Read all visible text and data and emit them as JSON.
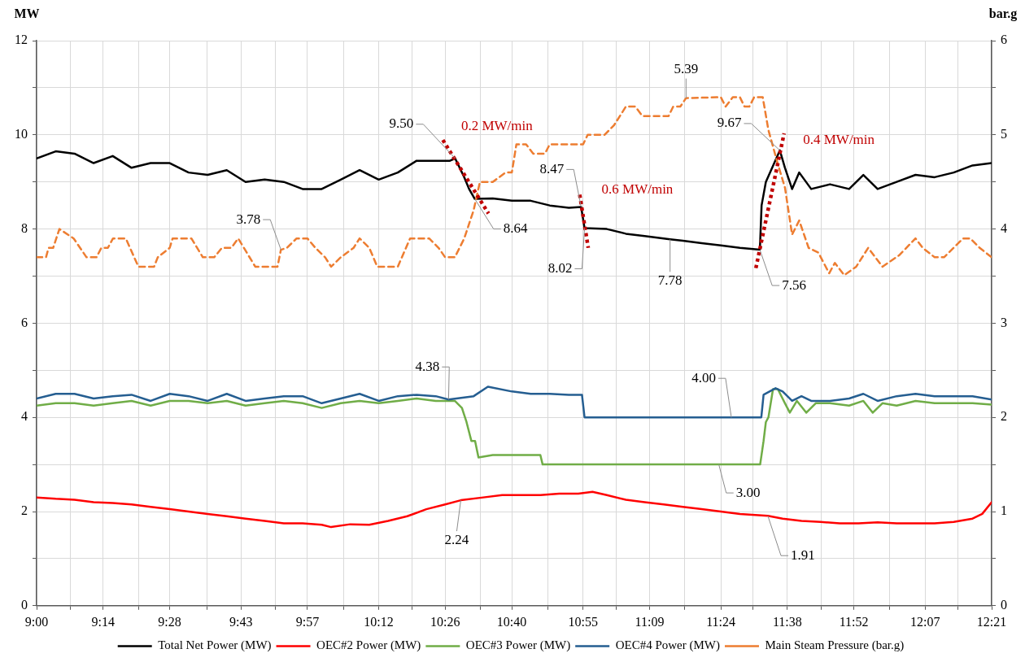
{
  "chart_data": {
    "type": "line",
    "ylabel": "MW",
    "y2label": "bar.g",
    "xlim": [
      9,
      12.35
    ],
    "xticks": [
      {
        "value": 9,
        "label": "9:00"
      },
      {
        "value": 9.1196,
        "label": null
      },
      {
        "value": 9.2333,
        "label": "9:14"
      },
      {
        "value": 9.3589,
        "label": null
      },
      {
        "value": 9.4667,
        "label": "9:28"
      },
      {
        "value": 9.5982,
        "label": null
      },
      {
        "value": 9.7167,
        "label": "9:43"
      },
      {
        "value": 9.8375,
        "label": null
      },
      {
        "value": 9.95,
        "label": "9:57"
      },
      {
        "value": 10.0768,
        "label": null
      },
      {
        "value": 10.2,
        "label": "10:12"
      },
      {
        "value": 10.3161,
        "label": null
      },
      {
        "value": 10.4333,
        "label": "10:26"
      },
      {
        "value": 10.5554,
        "label": null
      },
      {
        "value": 10.6667,
        "label": "10:40"
      },
      {
        "value": 10.7946,
        "label": null
      },
      {
        "value": 10.9167,
        "label": "10:55"
      },
      {
        "value": 11.0339,
        "label": null
      },
      {
        "value": 11.15,
        "label": "11:09"
      },
      {
        "value": 11.2732,
        "label": null
      },
      {
        "value": 11.4,
        "label": "11:24"
      },
      {
        "value": 11.5125,
        "label": null
      },
      {
        "value": 11.6333,
        "label": "11:38"
      },
      {
        "value": 11.7518,
        "label": null
      },
      {
        "value": 11.8667,
        "label": "11:52"
      },
      {
        "value": 11.9911,
        "label": null
      },
      {
        "value": 12.1167,
        "label": "12:07"
      },
      {
        "value": 12.2304,
        "label": null
      },
      {
        "value": 12.35,
        "label": "12:21"
      }
    ],
    "ylim": [
      0,
      12
    ],
    "yticks": [
      0,
      {
        "value": 1,
        "label": null
      },
      2,
      {
        "value": 3,
        "label": null
      },
      4,
      {
        "value": 5,
        "label": null
      },
      6,
      {
        "value": 7,
        "label": null
      },
      8,
      {
        "value": 9,
        "label": null
      },
      10,
      {
        "value": 11,
        "label": null
      },
      12
    ],
    "y2lim": [
      0,
      6
    ],
    "y2ticks": [
      0,
      {
        "value": 0.5,
        "label": null
      },
      1,
      {
        "value": 1.5,
        "label": null
      },
      2,
      {
        "value": 2.5,
        "label": null
      },
      3,
      {
        "value": 3.5,
        "label": null
      },
      4,
      {
        "value": 4.5,
        "label": null
      },
      5,
      {
        "value": 5.5,
        "label": null
      },
      6
    ],
    "grid": true,
    "legend": "bottom",
    "series": [
      {
        "name": "Total Net Power (MW)",
        "color": "#000000",
        "x": [
          9,
          9.067,
          9.133,
          9.2,
          9.267,
          9.333,
          9.4,
          9.467,
          9.533,
          9.6,
          9.667,
          9.733,
          9.8,
          9.867,
          9.933,
          10,
          10.067,
          10.133,
          10.2,
          10.267,
          10.333,
          10.4,
          10.45,
          10.468,
          10.5,
          10.517,
          10.537,
          10.6,
          10.667,
          10.733,
          10.8,
          10.867,
          10.91,
          10.922,
          11,
          11.067,
          11.133,
          11.222,
          11.267,
          11.333,
          11.4,
          11.467,
          11.537,
          11.543,
          11.558,
          11.607,
          11.625,
          11.65,
          11.675,
          11.717,
          11.783,
          11.85,
          11.9,
          11.95,
          12.017,
          12.083,
          12.15,
          12.217,
          12.283,
          12.35
        ],
        "values": [
          9.5,
          9.65,
          9.6,
          9.4,
          9.55,
          9.3,
          9.4,
          9.4,
          9.2,
          9.15,
          9.25,
          9.0,
          9.05,
          9.0,
          8.85,
          8.85,
          9.05,
          9.25,
          9.05,
          9.2,
          9.45,
          9.45,
          9.45,
          9.5,
          9.1,
          8.85,
          8.64,
          8.65,
          8.6,
          8.6,
          8.5,
          8.45,
          8.47,
          8.02,
          8.0,
          7.9,
          7.85,
          7.78,
          7.75,
          7.7,
          7.65,
          7.6,
          7.56,
          8.5,
          9.0,
          9.67,
          9.3,
          8.85,
          9.2,
          8.85,
          8.95,
          8.85,
          9.15,
          8.85,
          9.0,
          9.15,
          9.1,
          9.2,
          9.35,
          9.4
        ]
      },
      {
        "name": "OEC#2 Power (MW)",
        "color": "#ff0000",
        "x": [
          9,
          9.067,
          9.133,
          9.2,
          9.267,
          9.333,
          9.4,
          9.467,
          9.533,
          9.6,
          9.667,
          9.733,
          9.8,
          9.867,
          9.933,
          10,
          10.033,
          10.1,
          10.167,
          10.233,
          10.3,
          10.367,
          10.433,
          10.488,
          10.567,
          10.633,
          10.7,
          10.767,
          10.833,
          10.9,
          10.95,
          11,
          11.067,
          11.133,
          11.2,
          11.267,
          11.333,
          11.4,
          11.467,
          11.565,
          11.617,
          11.683,
          11.75,
          11.817,
          11.883,
          11.95,
          12.017,
          12.083,
          12.15,
          12.217,
          12.283,
          12.317,
          12.35
        ],
        "values": [
          2.3,
          2.27,
          2.25,
          2.2,
          2.18,
          2.15,
          2.1,
          2.05,
          2.0,
          1.95,
          1.9,
          1.85,
          1.8,
          1.75,
          1.75,
          1.72,
          1.67,
          1.73,
          1.72,
          1.8,
          1.9,
          2.05,
          2.15,
          2.24,
          2.3,
          2.35,
          2.35,
          2.35,
          2.38,
          2.38,
          2.42,
          2.35,
          2.25,
          2.2,
          2.15,
          2.1,
          2.05,
          2.0,
          1.95,
          1.91,
          1.85,
          1.8,
          1.78,
          1.75,
          1.75,
          1.77,
          1.75,
          1.75,
          1.75,
          1.78,
          1.85,
          1.95,
          2.2
        ]
      },
      {
        "name": "OEC#3 Power (MW)",
        "color": "#70ad47",
        "x": [
          9,
          9.067,
          9.133,
          9.2,
          9.267,
          9.333,
          9.4,
          9.467,
          9.533,
          9.6,
          9.667,
          9.733,
          9.8,
          9.867,
          9.933,
          10,
          10.067,
          10.133,
          10.2,
          10.267,
          10.333,
          10.4,
          10.467,
          10.492,
          10.508,
          10.525,
          10.538,
          10.55,
          10.6,
          10.667,
          10.733,
          10.767,
          10.775,
          10.833,
          11,
          11.167,
          11.393,
          11.538,
          11.55,
          11.558,
          11.567,
          11.583,
          11.6,
          11.625,
          11.642,
          11.667,
          11.7,
          11.733,
          11.783,
          11.85,
          11.9,
          11.933,
          11.967,
          12.017,
          12.083,
          12.15,
          12.217,
          12.283,
          12.35
        ],
        "values": [
          4.25,
          4.3,
          4.3,
          4.25,
          4.3,
          4.35,
          4.25,
          4.35,
          4.35,
          4.3,
          4.35,
          4.25,
          4.3,
          4.35,
          4.3,
          4.2,
          4.3,
          4.35,
          4.3,
          4.35,
          4.4,
          4.35,
          4.35,
          4.2,
          3.9,
          3.5,
          3.5,
          3.15,
          3.2,
          3.2,
          3.2,
          3.2,
          3.0,
          3.0,
          3.0,
          3.0,
          3.0,
          3.0,
          3.5,
          3.9,
          4.0,
          4.6,
          4.6,
          4.3,
          4.1,
          4.35,
          4.1,
          4.3,
          4.3,
          4.25,
          4.35,
          4.1,
          4.3,
          4.25,
          4.35,
          4.3,
          4.3,
          4.3,
          4.27
        ]
      },
      {
        "name": "OEC#4 Power (MW)",
        "color": "#255e91",
        "x": [
          9,
          9.067,
          9.133,
          9.2,
          9.267,
          9.333,
          9.4,
          9.467,
          9.533,
          9.6,
          9.667,
          9.733,
          9.8,
          9.867,
          9.933,
          10,
          10.067,
          10.133,
          10.2,
          10.267,
          10.333,
          10.4,
          10.445,
          10.533,
          10.583,
          10.667,
          10.733,
          10.8,
          10.867,
          10.913,
          10.922,
          11,
          11.167,
          11.437,
          11.542,
          11.55,
          11.592,
          11.617,
          11.65,
          11.683,
          11.717,
          11.783,
          11.85,
          11.9,
          11.95,
          12.017,
          12.083,
          12.15,
          12.217,
          12.283,
          12.35
        ],
        "values": [
          4.4,
          4.5,
          4.5,
          4.4,
          4.45,
          4.48,
          4.35,
          4.5,
          4.45,
          4.35,
          4.5,
          4.35,
          4.4,
          4.45,
          4.45,
          4.3,
          4.4,
          4.5,
          4.35,
          4.45,
          4.48,
          4.45,
          4.38,
          4.45,
          4.65,
          4.55,
          4.5,
          4.5,
          4.48,
          4.48,
          4.0,
          4.0,
          4.0,
          4.0,
          4.0,
          4.48,
          4.62,
          4.55,
          4.35,
          4.45,
          4.35,
          4.35,
          4.4,
          4.5,
          4.35,
          4.45,
          4.5,
          4.45,
          4.45,
          4.45,
          4.38
        ]
      },
      {
        "name": "Main Steam Pressure (bar.g)",
        "color": "#ed7d31",
        "axis": "y2",
        "line_style": "dashed",
        "x": [
          9,
          9.033,
          9.042,
          9.058,
          9.08,
          9.13,
          9.175,
          9.21,
          9.227,
          9.25,
          9.268,
          9.313,
          9.357,
          9.412,
          9.425,
          9.467,
          9.477,
          9.543,
          9.583,
          9.623,
          9.65,
          9.683,
          9.707,
          9.767,
          9.845,
          9.857,
          9.878,
          9.912,
          9.95,
          9.978,
          10.012,
          10.033,
          10.067,
          10.112,
          10.133,
          10.167,
          10.195,
          10.267,
          10.31,
          10.377,
          10.41,
          10.433,
          10.467,
          10.5,
          10.533,
          10.555,
          10.6,
          10.645,
          10.667,
          10.683,
          10.717,
          10.742,
          10.783,
          10.8,
          10.917,
          10.933,
          10.992,
          11.025,
          11.067,
          11.1,
          11.125,
          11.217,
          11.233,
          11.258,
          11.278,
          11.4,
          11.417,
          11.442,
          11.467,
          11.483,
          11.5,
          11.517,
          11.547,
          11.567,
          11.6,
          11.625,
          11.65,
          11.675,
          11.708,
          11.742,
          11.78,
          11.8,
          11.833,
          11.875,
          11.917,
          11.967,
          12.025,
          12.083,
          12.108,
          12.15,
          12.183,
          12.25,
          12.275,
          12.308,
          12.35
        ],
        "values": [
          3.7,
          3.7,
          3.8,
          3.8,
          4.0,
          3.9,
          3.7,
          3.7,
          3.8,
          3.8,
          3.9,
          3.9,
          3.6,
          3.6,
          3.7,
          3.8,
          3.9,
          3.9,
          3.7,
          3.7,
          3.8,
          3.8,
          3.9,
          3.6,
          3.6,
          3.78,
          3.8,
          3.9,
          3.9,
          3.8,
          3.7,
          3.6,
          3.7,
          3.8,
          3.9,
          3.8,
          3.6,
          3.6,
          3.9,
          3.9,
          3.8,
          3.7,
          3.7,
          3.9,
          4.2,
          4.5,
          4.5,
          4.6,
          4.6,
          4.9,
          4.9,
          4.8,
          4.8,
          4.9,
          4.9,
          5.0,
          5.0,
          5.1,
          5.3,
          5.3,
          5.2,
          5.2,
          5.3,
          5.3,
          5.39,
          5.4,
          5.3,
          5.4,
          5.4,
          5.3,
          5.3,
          5.4,
          5.4,
          5.05,
          4.69,
          4.44,
          3.94,
          4.09,
          3.8,
          3.75,
          3.53,
          3.64,
          3.51,
          3.6,
          3.8,
          3.6,
          3.72,
          3.9,
          3.8,
          3.7,
          3.7,
          3.9,
          3.9,
          3.8,
          3.7
        ]
      },
      {
        "type": "line",
        "color": "#c00000",
        "line_style": "dotted",
        "x": [
          10.425,
          10.585
        ],
        "values": [
          9.89,
          8.33
        ]
      },
      {
        "type": "line",
        "color": "#c00000",
        "line_style": "dotted",
        "x": [
          10.905,
          10.935
        ],
        "values": [
          8.73,
          7.6
        ]
      },
      {
        "type": "line",
        "color": "#c00000",
        "line_style": "dotted",
        "x": [
          11.523,
          11.622
        ],
        "values": [
          7.17,
          10.03
        ]
      }
    ],
    "annotations": [
      {
        "text": "9.50",
        "x": 10.468,
        "y": 9.5
      },
      {
        "text": "8.64",
        "x": 10.537,
        "y": 8.64
      },
      {
        "text": "8.47",
        "x": 10.91,
        "y": 8.47
      },
      {
        "text": "8.02",
        "x": 10.922,
        "y": 8.02
      },
      {
        "text": "7.78",
        "x": 11.222,
        "y": 7.78
      },
      {
        "text": "7.56",
        "x": 11.537,
        "y": 7.56
      },
      {
        "text": "9.67",
        "x": 11.607,
        "y": 9.67
      },
      {
        "text": "3.78",
        "x": 9.857,
        "y": 7.56
      },
      {
        "text": "5.39",
        "x": 11.278,
        "y": 10.78
      },
      {
        "text": "4.38",
        "x": 10.445,
        "y": 4.38
      },
      {
        "text": "4.00",
        "x": 11.437,
        "y": 4.0
      },
      {
        "text": "3.00",
        "x": 11.393,
        "y": 3.0
      },
      {
        "text": "2.24",
        "x": 10.488,
        "y": 2.24
      },
      {
        "text": "1.91",
        "x": 11.565,
        "y": 1.91
      },
      "0.2 MW/min",
      "0.6 MW/min",
      "0.4 MW/min"
    ]
  }
}
